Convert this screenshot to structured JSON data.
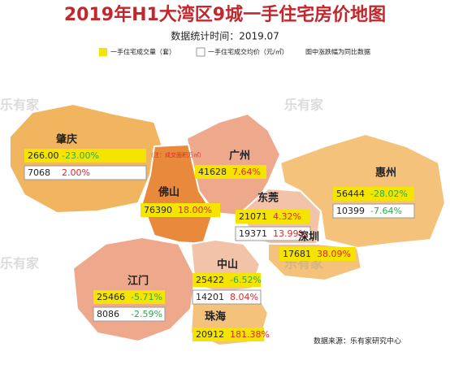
{
  "title": "2019年H1大湾区9城一手住宅房价地图",
  "subtitle": "数据统计时间：2019.07",
  "legend": {
    "volume": "一手住宅成交量（套）",
    "price": "一手住宅成交均价（元/㎡）",
    "note": "图中涨跌幅为同比数据"
  },
  "watermark": "乐有家",
  "cities": [
    {
      "name": "肇庆",
      "volume": "266.00",
      "volume_change": "-23.00%",
      "price": "7068",
      "price_change": "2.00%",
      "note": "（注：成交面积万㎡）"
    },
    {
      "name": "广州",
      "volume": "41628",
      "volume_change": "7.64%"
    },
    {
      "name": "佛山",
      "volume": "76390",
      "volume_change": "18.00%"
    },
    {
      "name": "东莞",
      "volume": "21071",
      "volume_change": "4.32%",
      "price": "19371",
      "price_change": "13.99%"
    },
    {
      "name": "惠州",
      "volume": "56444",
      "volume_change": "-28.02%",
      "price": "10399",
      "price_change": "-7.64%"
    },
    {
      "name": "深圳",
      "volume": "17681",
      "volume_change": "38.09%"
    },
    {
      "name": "中山",
      "volume": "25422",
      "volume_change": "-6.52%",
      "price": "14201",
      "price_change": "8.04%"
    },
    {
      "name": "江门",
      "volume": "25466",
      "volume_change": "-5.71%",
      "price": "8086",
      "price_change": "-2.59%"
    },
    {
      "name": "珠海",
      "volume": "20912",
      "volume_change": "181.38%"
    }
  ],
  "source": "数据来源：乐有家研究中心"
}
